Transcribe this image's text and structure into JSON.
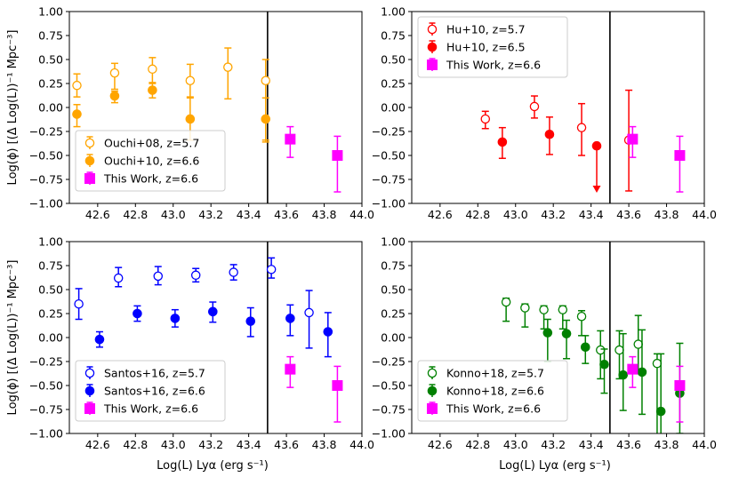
{
  "figure": {
    "shared_xlabel": "Log(L) Lyα (erg s⁻¹)",
    "shared_ylabel": "Log(ϕ) [(Δ Log(L))⁻¹ Mpc⁻³]",
    "divider_x": 43.5,
    "xlim": [
      42.45,
      44.0
    ],
    "ylim": [
      -1.0,
      1.0
    ],
    "xticks": [
      42.6,
      42.8,
      43.0,
      43.2,
      43.4,
      43.6,
      43.8,
      44.0
    ],
    "yticks": [
      -1.0,
      -0.75,
      -0.5,
      -0.25,
      0.0,
      0.25,
      0.5,
      0.75,
      1.0
    ]
  },
  "chart_data": [
    {
      "type": "scatter",
      "panel": "top-left",
      "xlabel": "",
      "ylabel": "Log(ϕ) [(Δ Log(L))⁻¹ Mpc⁻³]",
      "xlim": [
        42.45,
        44.0
      ],
      "ylim": [
        -1.0,
        1.0
      ],
      "legend_position": "lower-left",
      "series": [
        {
          "name": "Ouchi+08, z=5.7",
          "color": "#ffa500",
          "marker": "open-circle",
          "x": [
            42.49,
            42.69,
            42.89,
            43.09,
            43.29,
            43.49
          ],
          "y": [
            0.23,
            0.36,
            0.4,
            0.28,
            0.42,
            0.28
          ],
          "err_low": [
            0.12,
            0.17,
            0.14,
            0.17,
            0.33,
            0.64
          ],
          "err_high": [
            0.12,
            0.1,
            0.12,
            0.17,
            0.2,
            0.22
          ]
        },
        {
          "name": "Ouchi+10, z=6.6",
          "color": "#ffa500",
          "marker": "filled-circle",
          "x": [
            42.49,
            42.69,
            42.89,
            43.09,
            43.49
          ],
          "y": [
            -0.07,
            0.12,
            0.18,
            -0.12,
            -0.12
          ],
          "err_low": [
            0.13,
            0.07,
            0.08,
            0.22,
            0.22
          ],
          "err_high": [
            0.1,
            0.05,
            0.07,
            0.22,
            0.22
          ]
        },
        {
          "name": "This Work, z=6.6",
          "color": "#ff00ff",
          "marker": "filled-square",
          "x": [
            43.62,
            43.87
          ],
          "y": [
            -0.33,
            -0.5
          ],
          "err_low": [
            0.19,
            0.38
          ],
          "err_high": [
            0.13,
            0.2
          ]
        }
      ]
    },
    {
      "type": "scatter",
      "panel": "top-right",
      "xlabel": "",
      "ylabel": "",
      "xlim": [
        42.45,
        44.0
      ],
      "ylim": [
        -1.0,
        1.0
      ],
      "legend_position": "upper-left",
      "series": [
        {
          "name": "Hu+10, z=5.7",
          "color": "#ff0000",
          "marker": "open-circle",
          "x": [
            42.84,
            43.1,
            43.35,
            43.6
          ],
          "y": [
            -0.12,
            0.01,
            -0.21,
            -0.34
          ],
          "err_low": [
            0.1,
            0.12,
            0.29,
            0.53
          ],
          "err_high": [
            0.08,
            0.11,
            0.25,
            0.52
          ]
        },
        {
          "name": "Hu+10, z=6.5",
          "color": "#ff0000",
          "marker": "filled-circle",
          "x": [
            42.93,
            43.18,
            43.43
          ],
          "y": [
            -0.36,
            -0.28,
            -0.4
          ],
          "err_low": [
            0.17,
            0.21,
            0.48
          ],
          "err_high": [
            0.15,
            0.18,
            0.0
          ],
          "upper_limit": [
            false,
            false,
            true
          ]
        },
        {
          "name": "This Work, z=6.6",
          "color": "#ff00ff",
          "marker": "filled-square",
          "x": [
            43.62,
            43.87
          ],
          "y": [
            -0.33,
            -0.5
          ],
          "err_low": [
            0.19,
            0.38
          ],
          "err_high": [
            0.13,
            0.2
          ]
        }
      ]
    },
    {
      "type": "scatter",
      "panel": "bottom-left",
      "xlabel": "Log(L) Lyα (erg s⁻¹)",
      "ylabel": "Log(ϕ) [(Δ Log(L))⁻¹ Mpc⁻³]",
      "xlim": [
        42.45,
        44.0
      ],
      "ylim": [
        -1.0,
        1.0
      ],
      "legend_position": "lower-left",
      "series": [
        {
          "name": "Santos+16, z=5.7",
          "color": "#0000ff",
          "marker": "open-circle",
          "x": [
            42.5,
            42.71,
            42.92,
            43.12,
            43.32,
            43.52,
            43.72
          ],
          "y": [
            0.35,
            0.62,
            0.64,
            0.65,
            0.68,
            0.71,
            0.26
          ],
          "err_low": [
            0.16,
            0.09,
            0.09,
            0.07,
            0.08,
            0.09,
            0.37
          ],
          "err_high": [
            0.16,
            0.11,
            0.1,
            0.07,
            0.08,
            0.12,
            0.23
          ]
        },
        {
          "name": "Santos+16, z=6.6",
          "color": "#0000ff",
          "marker": "filled-circle",
          "x": [
            42.61,
            42.81,
            43.01,
            43.21,
            43.41,
            43.62,
            43.82
          ],
          "y": [
            -0.02,
            0.25,
            0.2,
            0.27,
            0.17,
            0.2,
            0.06
          ],
          "err_low": [
            0.08,
            0.08,
            0.09,
            0.11,
            0.16,
            0.18,
            0.26
          ],
          "err_high": [
            0.08,
            0.08,
            0.09,
            0.1,
            0.14,
            0.14,
            0.2
          ]
        },
        {
          "name": "This Work, z=6.6",
          "color": "#ff00ff",
          "marker": "filled-square",
          "x": [
            43.62,
            43.87
          ],
          "y": [
            -0.33,
            -0.5
          ],
          "err_low": [
            0.19,
            0.38
          ],
          "err_high": [
            0.13,
            0.2
          ]
        }
      ]
    },
    {
      "type": "scatter",
      "panel": "bottom-right",
      "xlabel": "Log(L) Lyα (erg s⁻¹)",
      "ylabel": "",
      "xlim": [
        42.45,
        44.0
      ],
      "ylim": [
        -1.0,
        1.0
      ],
      "legend_position": "lower-left",
      "series": [
        {
          "name": "Konno+18, z=5.7",
          "color": "#008000",
          "marker": "open-circle",
          "x": [
            42.95,
            43.05,
            43.15,
            43.25,
            43.35,
            43.45,
            43.55,
            43.65,
            43.75
          ],
          "y": [
            0.37,
            0.31,
            0.29,
            0.29,
            0.22,
            -0.13,
            -0.13,
            -0.07,
            -0.27
          ],
          "err_low": [
            0.2,
            0.2,
            0.2,
            0.2,
            0.2,
            0.3,
            0.3,
            0.3,
            0.8
          ],
          "err_high": [
            0.04,
            0.04,
            0.04,
            0.04,
            0.06,
            0.2,
            0.2,
            0.3,
            0.1
          ]
        },
        {
          "name": "Konno+18, z=6.6",
          "color": "#008000",
          "marker": "filled-circle",
          "x": [
            43.17,
            43.27,
            43.37,
            43.47,
            43.57,
            43.67,
            43.77,
            43.87
          ],
          "y": [
            0.05,
            0.04,
            -0.1,
            -0.28,
            -0.39,
            -0.36,
            -0.77,
            -0.58
          ],
          "err_low": [
            0.3,
            0.26,
            0.17,
            0.3,
            0.37,
            0.44,
            0.3,
            0.42
          ],
          "err_high": [
            0.14,
            0.14,
            0.12,
            0.16,
            0.43,
            0.44,
            0.6,
            0.52
          ]
        },
        {
          "name": "This Work, z=6.6",
          "color": "#ff00ff",
          "marker": "filled-square",
          "x": [
            43.62,
            43.87
          ],
          "y": [
            -0.33,
            -0.5
          ],
          "err_low": [
            0.19,
            0.38
          ],
          "err_high": [
            0.13,
            0.2
          ]
        }
      ]
    }
  ]
}
